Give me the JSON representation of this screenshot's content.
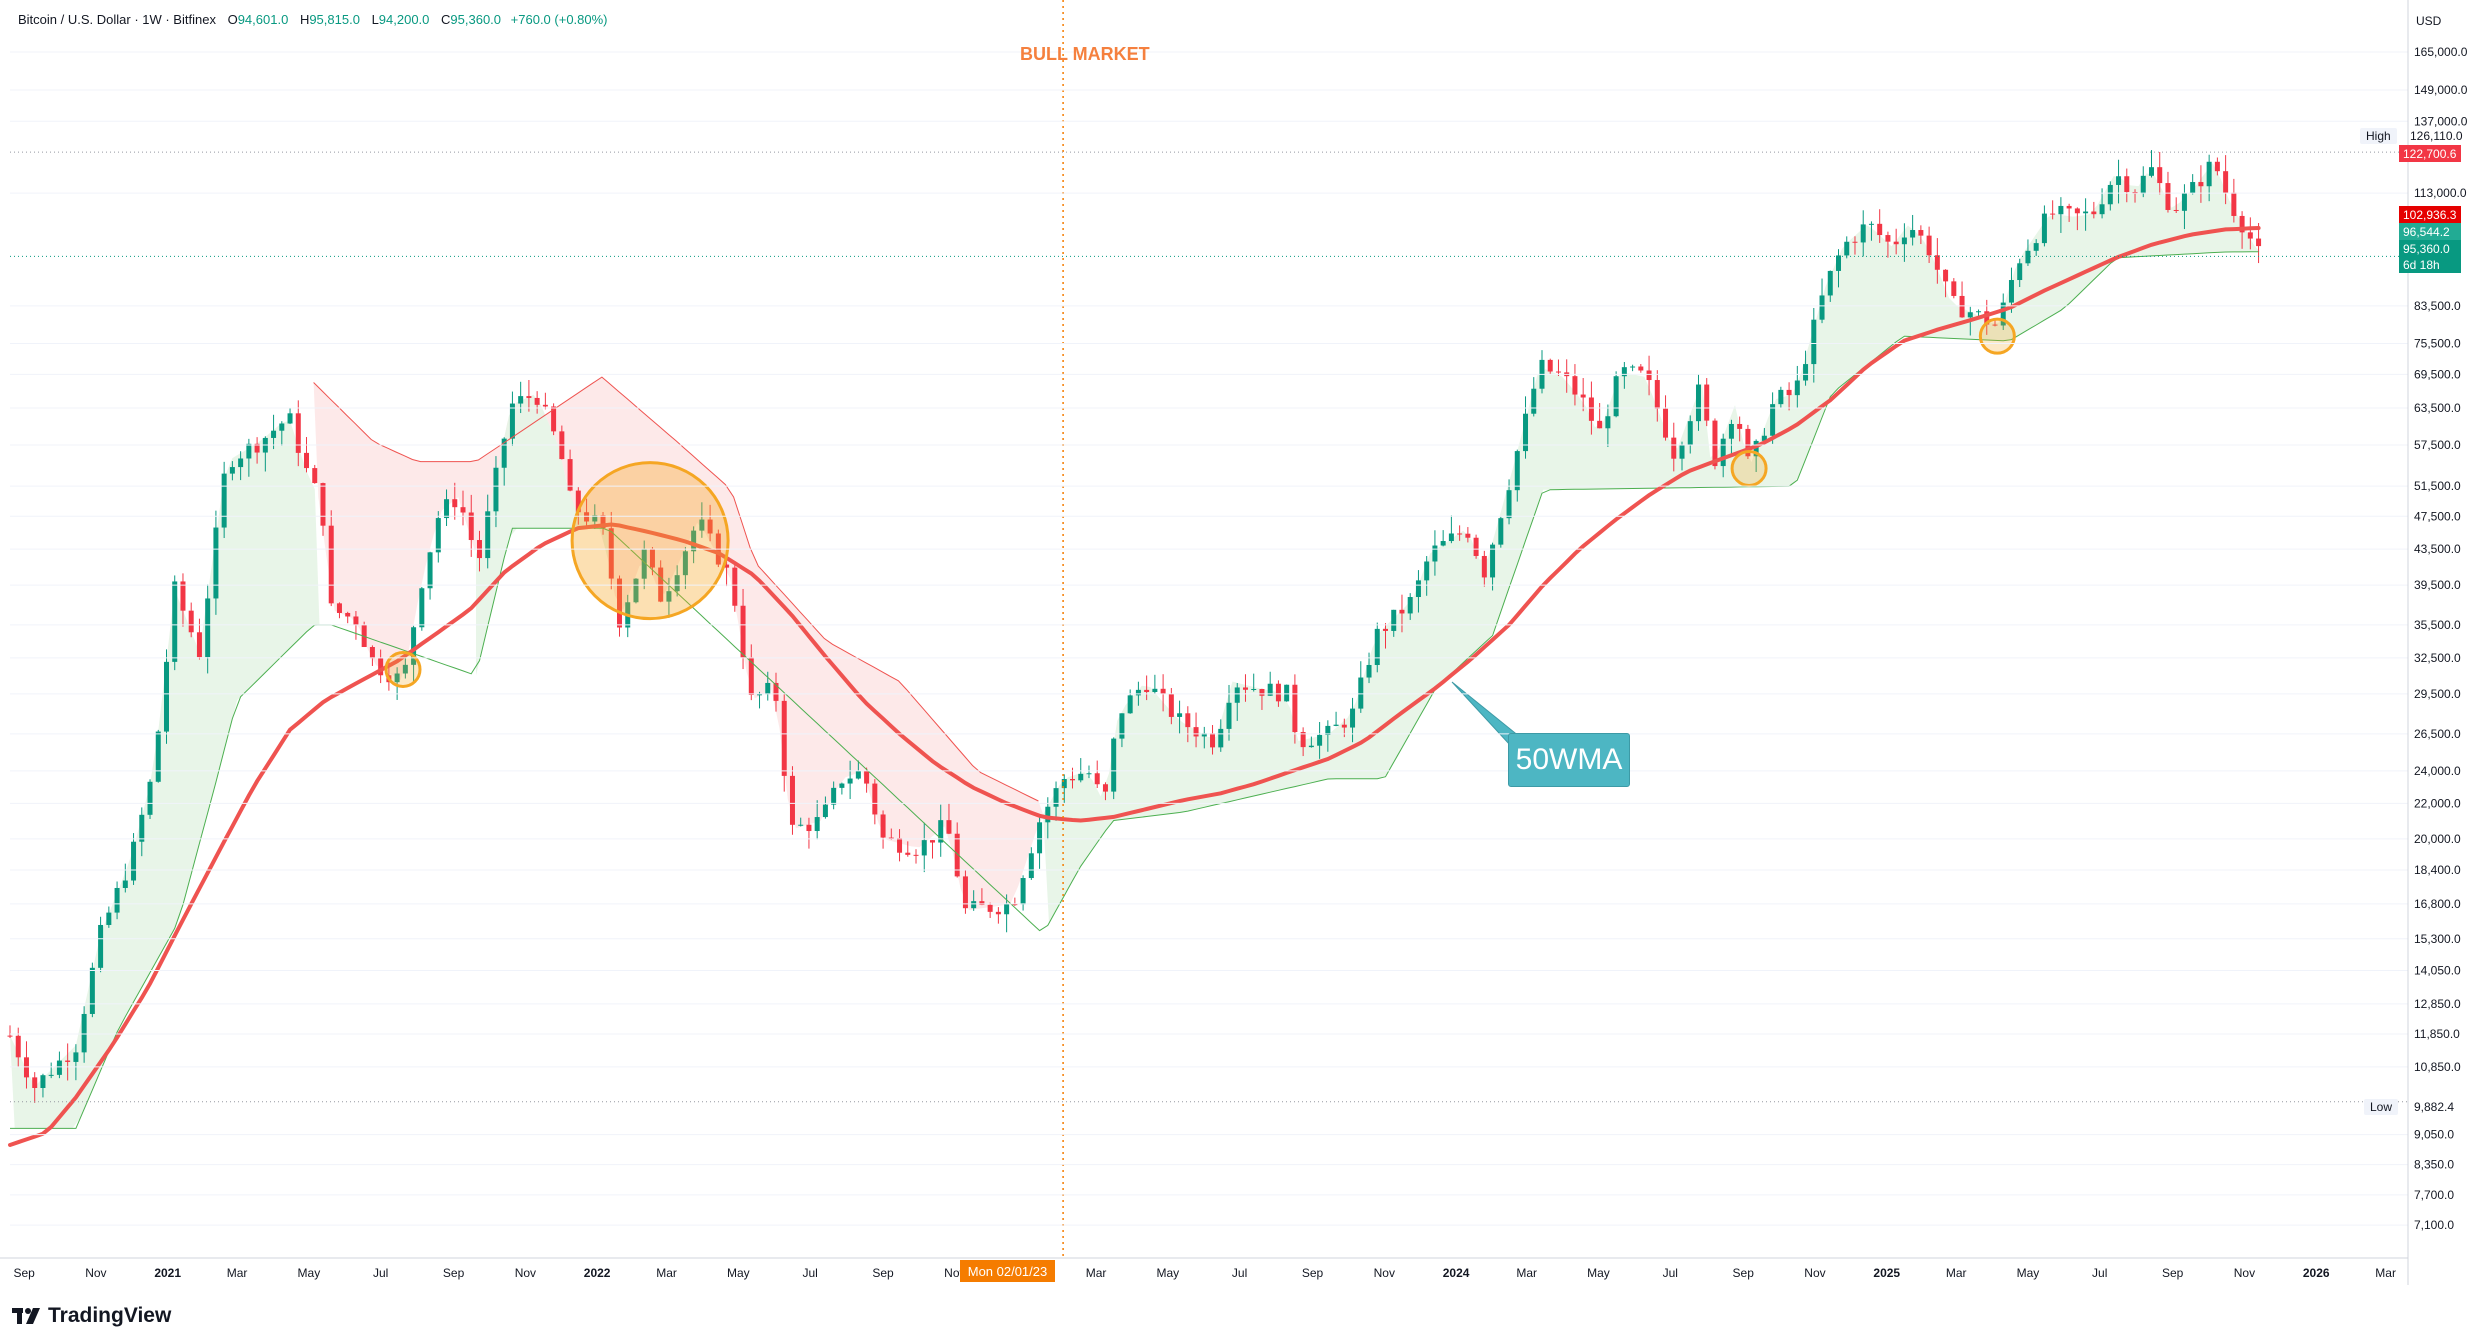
{
  "header": {
    "symbol": "Bitcoin / U.S. Dollar · 1W · Bitfinex",
    "open_label": "O",
    "open": "94,601.0",
    "high_label": "H",
    "high": "95,815.0",
    "low_label": "L",
    "low": "94,200.0",
    "close_label": "C",
    "close": "95,360.0",
    "change": "+760.0 (+0.80%)"
  },
  "annotations": {
    "bull_market": "BULL MARKET",
    "wma_label": "50WMA",
    "cursor_date": "Mon 02/01/23"
  },
  "price_scale": {
    "currency": "USD",
    "high_label": "High",
    "high_value": "126,110.0",
    "low_label": "Low",
    "low_value": "9,882.4",
    "tags": [
      {
        "text": "122,700.6",
        "color": "#f23645"
      },
      {
        "text": "102,936.3",
        "color": "#e50000"
      },
      {
        "text": "96,544.2",
        "color": "#22ab94"
      },
      {
        "text": "95,360.0",
        "color": "#089981"
      },
      {
        "text": "6d 18h",
        "color": "#089981"
      }
    ]
  },
  "branding": {
    "logo_text": "TradingView"
  },
  "colors": {
    "up": "#089981",
    "down": "#f23645",
    "wma": "#ef5350",
    "highlight_circle": "#f5a623",
    "bull_fill": "#e6f4e6",
    "bear_fill": "#fde4e4"
  },
  "chart_data": {
    "type": "candlestick",
    "title": "",
    "scale": "log",
    "ylim": [
      6500,
      175000
    ],
    "xlim": [
      "2020-08-20",
      "2026-03-20"
    ],
    "y_ticks": [
      "7,100.0",
      "7,700.0",
      "8,350.0",
      "9,050.0",
      "10,850.0",
      "11,850.0",
      "12,850.0",
      "14,050.0",
      "15,300.0",
      "16,800.0",
      "18,400.0",
      "20,000.0",
      "22,000.0",
      "24,000.0",
      "26,500.0",
      "29,500.0",
      "32,500.0",
      "35,500.0",
      "39,500.0",
      "43,500.0",
      "47,500.0",
      "51,500.0",
      "57,500.0",
      "63,500.0",
      "69,500.0",
      "75,500.0",
      "83,500.0",
      "113,000.0",
      "137,000.0",
      "149,000.0",
      "165,000.0"
    ],
    "x_ticks": [
      {
        "label": "Sep",
        "date": "2020-09-01",
        "bold": false
      },
      {
        "label": "Nov",
        "date": "2020-11-01",
        "bold": false
      },
      {
        "label": "2021",
        "date": "2021-01-01",
        "bold": true
      },
      {
        "label": "Mar",
        "date": "2021-03-01",
        "bold": false
      },
      {
        "label": "May",
        "date": "2021-05-01",
        "bold": false
      },
      {
        "label": "Jul",
        "date": "2021-07-01",
        "bold": false
      },
      {
        "label": "Sep",
        "date": "2021-09-01",
        "bold": false
      },
      {
        "label": "Nov",
        "date": "2021-11-01",
        "bold": false
      },
      {
        "label": "2022",
        "date": "2022-01-01",
        "bold": true
      },
      {
        "label": "Mar",
        "date": "2022-03-01",
        "bold": false
      },
      {
        "label": "May",
        "date": "2022-05-01",
        "bold": false
      },
      {
        "label": "Jul",
        "date": "2022-07-01",
        "bold": false
      },
      {
        "label": "Sep",
        "date": "2022-09-01",
        "bold": false
      },
      {
        "label": "Nov",
        "date": "2022-11-01",
        "bold": false
      },
      {
        "label": "Mar",
        "date": "2023-03-01",
        "bold": false
      },
      {
        "label": "May",
        "date": "2023-05-01",
        "bold": false
      },
      {
        "label": "Jul",
        "date": "2023-07-01",
        "bold": false
      },
      {
        "label": "Sep",
        "date": "2023-09-01",
        "bold": false
      },
      {
        "label": "Nov",
        "date": "2023-11-01",
        "bold": false
      },
      {
        "label": "2024",
        "date": "2024-01-01",
        "bold": true
      },
      {
        "label": "Mar",
        "date": "2024-03-01",
        "bold": false
      },
      {
        "label": "May",
        "date": "2024-05-01",
        "bold": false
      },
      {
        "label": "Jul",
        "date": "2024-07-01",
        "bold": false
      },
      {
        "label": "Sep",
        "date": "2024-09-01",
        "bold": false
      },
      {
        "label": "Nov",
        "date": "2024-11-01",
        "bold": false
      },
      {
        "label": "2025",
        "date": "2025-01-01",
        "bold": true
      },
      {
        "label": "Mar",
        "date": "2025-03-01",
        "bold": false
      },
      {
        "label": "May",
        "date": "2025-05-01",
        "bold": false
      },
      {
        "label": "Jul",
        "date": "2025-07-01",
        "bold": false
      },
      {
        "label": "Sep",
        "date": "2025-09-01",
        "bold": false
      },
      {
        "label": "Nov",
        "date": "2025-11-01",
        "bold": false
      },
      {
        "label": "2026",
        "date": "2026-01-01",
        "bold": true
      },
      {
        "label": "Mar",
        "date": "2026-03-01",
        "bold": false
      }
    ],
    "close_anchors": [
      [
        "2020-08-20",
        11800
      ],
      [
        "2020-09-10",
        10300
      ],
      [
        "2020-10-15",
        11500
      ],
      [
        "2020-11-05",
        15500
      ],
      [
        "2020-12-01",
        19000
      ],
      [
        "2020-12-20",
        24000
      ],
      [
        "2021-01-07",
        39000
      ],
      [
        "2021-01-28",
        33000
      ],
      [
        "2021-02-20",
        55000
      ],
      [
        "2021-03-20",
        58000
      ],
      [
        "2021-04-14",
        62000
      ],
      [
        "2021-04-28",
        54000
      ],
      [
        "2021-05-12",
        49000
      ],
      [
        "2021-05-20",
        37000
      ],
      [
        "2021-06-10",
        36000
      ],
      [
        "2021-06-25",
        32000
      ],
      [
        "2021-07-20",
        30500
      ],
      [
        "2021-08-05",
        40000
      ],
      [
        "2021-08-20",
        48000
      ],
      [
        "2021-09-05",
        50000
      ],
      [
        "2021-09-22",
        42000
      ],
      [
        "2021-10-12",
        57000
      ],
      [
        "2021-10-20",
        64000
      ],
      [
        "2021-11-10",
        66000
      ],
      [
        "2021-11-30",
        57000
      ],
      [
        "2021-12-10",
        49000
      ],
      [
        "2022-01-05",
        46000
      ],
      [
        "2022-01-20",
        36000
      ],
      [
        "2022-02-10",
        43000
      ],
      [
        "2022-02-25",
        38000
      ],
      [
        "2022-03-28",
        47000
      ],
      [
        "2022-04-25",
        40000
      ],
      [
        "2022-05-12",
        29000
      ],
      [
        "2022-06-01",
        30000
      ],
      [
        "2022-06-15",
        20500
      ],
      [
        "2022-07-10",
        21000
      ],
      [
        "2022-07-28",
        23500
      ],
      [
        "2022-08-15",
        24000
      ],
      [
        "2022-09-01",
        20000
      ],
      [
        "2022-10-01",
        19500
      ],
      [
        "2022-10-25",
        20800
      ],
      [
        "2022-11-10",
        16500
      ],
      [
        "2022-12-20",
        16800
      ],
      [
        "2023-01-12",
        21000
      ],
      [
        "2023-02-01",
        23500
      ],
      [
        "2023-02-22",
        24000
      ],
      [
        "2023-03-08",
        22000
      ],
      [
        "2023-03-20",
        28000
      ],
      [
        "2023-04-12",
        30500
      ],
      [
        "2023-05-10",
        27500
      ],
      [
        "2023-06-10",
        26000
      ],
      [
        "2023-06-25",
        30500
      ],
      [
        "2023-07-15",
        30000
      ],
      [
        "2023-08-10",
        29500
      ],
      [
        "2023-08-20",
        26000
      ],
      [
        "2023-09-15",
        26500
      ],
      [
        "2023-10-05",
        28000
      ],
      [
        "2023-10-25",
        34500
      ],
      [
        "2023-11-25",
        38000
      ],
      [
        "2023-12-10",
        43000
      ],
      [
        "2024-01-10",
        46000
      ],
      [
        "2024-01-25",
        41000
      ],
      [
        "2024-02-15",
        52000
      ],
      [
        "2024-03-12",
        71000
      ],
      [
        "2024-04-01",
        69000
      ],
      [
        "2024-04-20",
        64000
      ],
      [
        "2024-05-01",
        59000
      ],
      [
        "2024-05-20",
        70000
      ],
      [
        "2024-06-10",
        69000
      ],
      [
        "2024-07-05",
        56000
      ],
      [
        "2024-07-28",
        68000
      ],
      [
        "2024-08-05",
        54000
      ],
      [
        "2024-08-25",
        64000
      ],
      [
        "2024-09-06",
        54000
      ],
      [
        "2024-09-28",
        65000
      ],
      [
        "2024-10-15",
        66000
      ],
      [
        "2024-11-10",
        88000
      ],
      [
        "2024-11-25",
        98000
      ],
      [
        "2024-12-16",
        104000
      ],
      [
        "2025-01-05",
        98000
      ],
      [
        "2025-01-20",
        104000
      ],
      [
        "2025-02-05",
        98000
      ],
      [
        "2025-02-25",
        84000
      ],
      [
        "2025-03-15",
        82000
      ],
      [
        "2025-04-05",
        79000
      ],
      [
        "2025-04-22",
        94000
      ],
      [
        "2025-05-20",
        107000
      ],
      [
        "2025-06-10",
        106000
      ],
      [
        "2025-06-25",
        107000
      ],
      [
        "2025-07-14",
        119000
      ],
      [
        "2025-08-01",
        114000
      ],
      [
        "2025-08-13",
        121000
      ],
      [
        "2025-09-01",
        108000
      ],
      [
        "2025-09-20",
        115000
      ],
      [
        "2025-10-06",
        123000
      ],
      [
        "2025-10-20",
        110000
      ],
      [
        "2025-11-03",
        102000
      ],
      [
        "2025-11-14",
        95360
      ]
    ],
    "wma_anchors": [
      [
        "2020-08-20",
        8800
      ],
      [
        "2020-09-20",
        9100
      ],
      [
        "2020-10-15",
        10000
      ],
      [
        "2020-11-15",
        11500
      ],
      [
        "2020-12-15",
        13400
      ],
      [
        "2021-01-15",
        16200
      ],
      [
        "2021-02-15",
        19500
      ],
      [
        "2021-03-15",
        23000
      ],
      [
        "2021-04-15",
        26800
      ],
      [
        "2021-05-15",
        29000
      ],
      [
        "2021-06-15",
        30600
      ],
      [
        "2021-07-15",
        32200
      ],
      [
        "2021-08-15",
        34500
      ],
      [
        "2021-09-15",
        37000
      ],
      [
        "2021-10-15",
        41000
      ],
      [
        "2021-11-15",
        44000
      ],
      [
        "2021-12-15",
        46000
      ],
      [
        "2022-01-15",
        46500
      ],
      [
        "2022-02-15",
        45500
      ],
      [
        "2022-03-15",
        44500
      ],
      [
        "2022-04-15",
        43000
      ],
      [
        "2022-05-15",
        40500
      ],
      [
        "2022-06-15",
        36500
      ],
      [
        "2022-07-15",
        32500
      ],
      [
        "2022-08-15",
        29000
      ],
      [
        "2022-09-15",
        26500
      ],
      [
        "2022-10-15",
        24500
      ],
      [
        "2022-11-15",
        23000
      ],
      [
        "2022-12-15",
        22000
      ],
      [
        "2023-01-15",
        21200
      ],
      [
        "2023-02-15",
        21000
      ],
      [
        "2023-03-15",
        21200
      ],
      [
        "2023-04-15",
        21700
      ],
      [
        "2023-05-15",
        22200
      ],
      [
        "2023-06-15",
        22600
      ],
      [
        "2023-07-15",
        23200
      ],
      [
        "2023-08-15",
        24000
      ],
      [
        "2023-09-15",
        24800
      ],
      [
        "2023-10-15",
        26000
      ],
      [
        "2023-11-15",
        28000
      ],
      [
        "2023-12-15",
        30000
      ],
      [
        "2024-01-15",
        32500
      ],
      [
        "2024-02-15",
        35500
      ],
      [
        "2024-03-15",
        39500
      ],
      [
        "2024-04-15",
        43500
      ],
      [
        "2024-05-15",
        47000
      ],
      [
        "2024-06-15",
        50500
      ],
      [
        "2024-07-15",
        53500
      ],
      [
        "2024-08-15",
        55500
      ],
      [
        "2024-09-15",
        57500
      ],
      [
        "2024-10-15",
        60500
      ],
      [
        "2024-11-15",
        65000
      ],
      [
        "2024-12-15",
        71000
      ],
      [
        "2025-01-15",
        76000
      ],
      [
        "2025-02-15",
        78500
      ],
      [
        "2025-03-15",
        80500
      ],
      [
        "2025-04-15",
        83000
      ],
      [
        "2025-05-15",
        87000
      ],
      [
        "2025-06-15",
        91000
      ],
      [
        "2025-07-15",
        95000
      ],
      [
        "2025-08-15",
        98500
      ],
      [
        "2025-09-15",
        101000
      ],
      [
        "2025-10-15",
        102500
      ],
      [
        "2025-11-14",
        102936
      ]
    ],
    "support_anchors": [
      [
        "2020-08-20",
        9200
      ],
      [
        "2020-10-15",
        9200
      ],
      [
        "2020-11-20",
        12000
      ],
      [
        "2021-01-10",
        16000
      ],
      [
        "2021-02-10",
        23000
      ],
      [
        "2021-03-01",
        29000
      ],
      [
        "2021-05-05",
        35500
      ],
      [
        "2021-05-20",
        35500
      ],
      [
        "2021-09-20",
        31000
      ],
      [
        "2021-10-20",
        46000
      ],
      [
        "2022-01-10",
        46000
      ],
      [
        "2023-01-15",
        15500
      ],
      [
        "2023-02-15",
        18500
      ],
      [
        "2023-03-15",
        21000
      ],
      [
        "2023-05-15",
        21500
      ],
      [
        "2023-09-15",
        23500
      ],
      [
        "2023-11-01",
        23500
      ],
      [
        "2023-12-15",
        30000
      ],
      [
        "2024-02-01",
        34500
      ],
      [
        "2024-03-15",
        51000
      ],
      [
        "2024-10-15",
        51500
      ],
      [
        "2024-11-15",
        66000
      ],
      [
        "2025-01-15",
        77000
      ],
      [
        "2025-04-15",
        76000
      ],
      [
        "2025-06-01",
        83000
      ],
      [
        "2025-07-15",
        95000
      ],
      [
        "2025-10-15",
        96500
      ],
      [
        "2025-11-14",
        96544
      ]
    ],
    "resistance_anchors": [
      [
        "2021-05-05",
        68000
      ],
      [
        "2021-06-25",
        58000
      ],
      [
        "2021-08-01",
        55000
      ],
      [
        "2021-09-20",
        55000
      ],
      [
        "2022-01-05",
        69000
      ],
      [
        "2022-03-10",
        58000
      ],
      [
        "2022-04-25",
        51000
      ],
      [
        "2022-05-15",
        42000
      ],
      [
        "2022-07-15",
        34000
      ],
      [
        "2022-09-15",
        30500
      ],
      [
        "2022-11-20",
        24000
      ],
      [
        "2023-01-15",
        22000
      ]
    ],
    "highlight_circles": [
      {
        "date": "2021-07-20",
        "price": 31500,
        "r": 17
      },
      {
        "date": "2022-02-15",
        "price": 44500,
        "r": 78
      },
      {
        "date": "2024-09-06",
        "price": 54000,
        "r": 17
      },
      {
        "date": "2025-04-05",
        "price": 77000,
        "r": 17
      }
    ],
    "vertical_marker_date": "2023-02-01",
    "high": 126110,
    "low": 9882.4
  }
}
